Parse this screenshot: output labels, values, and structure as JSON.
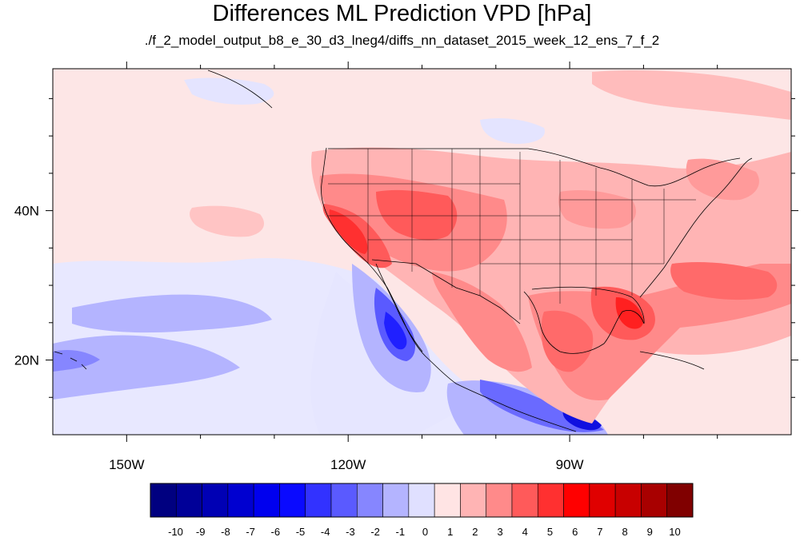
{
  "title": "Differences ML Prediction VPD [hPa]",
  "subtitle": "./f_2_model_output_b8_e_30_d3_lneg4/diffs_nn_dataset_2015_week_12_ens_7_f_2",
  "map": {
    "lon_range": [
      -160,
      -60
    ],
    "lat_range": [
      10,
      59
    ],
    "lon_ticks": [
      {
        "value": -150,
        "label": "150W"
      },
      {
        "value": -120,
        "label": "120W"
      },
      {
        "value": -90,
        "label": "90W"
      }
    ],
    "lat_ticks": [
      {
        "value": 40,
        "label": "40N"
      },
      {
        "value": 20,
        "label": "20N"
      }
    ],
    "background_color": "#fde6e6"
  },
  "colorbar": {
    "labels": [
      "-10",
      "-9",
      "-8",
      "-7",
      "-6",
      "-5",
      "-4",
      "-3",
      "-2",
      "-1",
      "0",
      "1",
      "2",
      "3",
      "4",
      "5",
      "6",
      "7",
      "8",
      "9",
      "10"
    ],
    "colors": [
      "#000080",
      "#000098",
      "#0000b4",
      "#0000d0",
      "#0000ee",
      "#0a0aff",
      "#3232ff",
      "#5a5aff",
      "#8686ff",
      "#b4b4ff",
      "#e0e0ff",
      "#ffe4e4",
      "#ffb4b4",
      "#ff8a8a",
      "#ff5a5a",
      "#ff3030",
      "#ff0000",
      "#e00000",
      "#c80000",
      "#a80000",
      "#800000"
    ]
  }
}
